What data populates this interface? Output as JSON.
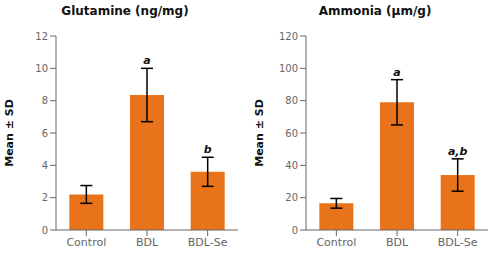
{
  "chart_data": [
    {
      "type": "bar",
      "title": "Glutamine (ng/mg)",
      "categories": [
        "Control",
        "BDL",
        "BDL-Se"
      ],
      "values": [
        2.2,
        8.35,
        3.6
      ],
      "errors": [
        0.55,
        1.65,
        0.9
      ],
      "annotations": [
        null,
        "a",
        "b"
      ],
      "ylabel": "Mean ± SD",
      "ylim": [
        0,
        12
      ],
      "yticks": [
        0,
        2,
        4,
        6,
        8,
        10,
        12
      ],
      "color": "#E8731A",
      "grid": false
    },
    {
      "type": "bar",
      "title": "Ammonia (μm/g)",
      "categories": [
        "Control",
        "BDL",
        "BDL-Se"
      ],
      "values": [
        16.5,
        79.0,
        34.0
      ],
      "errors": [
        3.0,
        14.0,
        10.0
      ],
      "annotations": [
        null,
        "a",
        "a,b"
      ],
      "ylabel": "Mean ± SD",
      "ylim": [
        0,
        120
      ],
      "yticks": [
        0,
        20,
        40,
        60,
        80,
        100,
        120
      ],
      "color": "#E8731A",
      "grid": false
    }
  ]
}
